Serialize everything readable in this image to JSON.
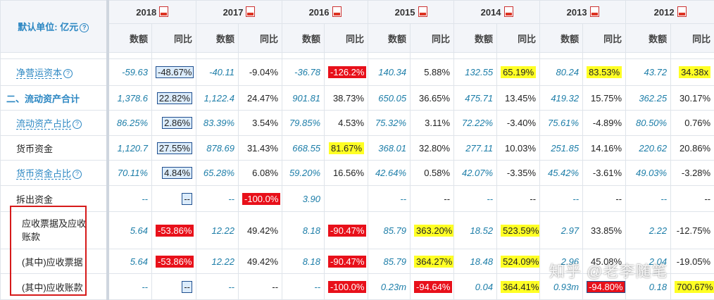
{
  "unit_label": "默认单位: 亿元",
  "years": [
    "2018",
    "2017",
    "2016",
    "2015",
    "2014",
    "2013",
    "2012"
  ],
  "sub_headers": {
    "amount": "数额",
    "yoy": "同比"
  },
  "rows": [
    {
      "label": "净营运资本",
      "style": "link",
      "help": true,
      "cells": [
        [
          "-59.63",
          {
            "t": "-48.67%",
            "h": "box"
          }
        ],
        [
          "-40.11",
          "-9.04%"
        ],
        [
          "-36.78",
          {
            "t": "-126.2%",
            "h": "red"
          }
        ],
        [
          "140.34",
          "5.88%"
        ],
        [
          "132.55",
          {
            "t": "65.19%",
            "h": "yel"
          }
        ],
        [
          "80.24",
          {
            "t": "83.53%",
            "h": "yel"
          }
        ],
        [
          "43.72",
          {
            "t": "34.38x",
            "h": "yel"
          }
        ]
      ]
    },
    {
      "label": "二、流动资产合计",
      "style": "bold",
      "help": false,
      "cells": [
        [
          "1,378.6",
          {
            "t": "22.82%",
            "h": "box"
          }
        ],
        [
          "1,122.4",
          "24.47%"
        ],
        [
          "901.81",
          "38.73%"
        ],
        [
          "650.05",
          "36.65%"
        ],
        [
          "475.71",
          "13.45%"
        ],
        [
          "419.32",
          "15.75%"
        ],
        [
          "362.25",
          "30.17%"
        ]
      ]
    },
    {
      "label": "流动资产占比",
      "style": "link",
      "help": true,
      "cells": [
        [
          "86.25%",
          {
            "t": "2.86%",
            "h": "box"
          }
        ],
        [
          "83.39%",
          "3.54%"
        ],
        [
          "79.85%",
          "4.53%"
        ],
        [
          "75.32%",
          "3.11%"
        ],
        [
          "72.22%",
          "-3.40%"
        ],
        [
          "75.61%",
          "-4.89%"
        ],
        [
          "80.50%",
          "0.76%"
        ]
      ]
    },
    {
      "label": "货币资金",
      "style": "plain",
      "help": false,
      "cells": [
        [
          "1,120.7",
          {
            "t": "27.55%",
            "h": "box"
          }
        ],
        [
          "878.69",
          "31.43%"
        ],
        [
          "668.55",
          {
            "t": "81.67%",
            "h": "yel"
          }
        ],
        [
          "368.01",
          "32.80%"
        ],
        [
          "277.11",
          "10.03%"
        ],
        [
          "251.85",
          "14.16%"
        ],
        [
          "220.62",
          "20.86%"
        ]
      ]
    },
    {
      "label": "货币资金占比",
      "style": "link",
      "help": true,
      "cells": [
        [
          "70.11%",
          {
            "t": "4.84%",
            "h": "box"
          }
        ],
        [
          "65.28%",
          "6.08%"
        ],
        [
          "59.20%",
          "16.56%"
        ],
        [
          "42.64%",
          "0.58%"
        ],
        [
          "42.07%",
          "-3.35%"
        ],
        [
          "45.42%",
          "-3.61%"
        ],
        [
          "49.03%",
          "-3.28%"
        ]
      ]
    },
    {
      "label": "拆出资金",
      "style": "plain",
      "help": false,
      "cells": [
        [
          "--",
          {
            "t": "--",
            "h": "box"
          }
        ],
        [
          "--",
          {
            "t": "-100.0%",
            "h": "red"
          }
        ],
        [
          "3.90",
          ""
        ],
        [
          "--",
          "--"
        ],
        [
          "--",
          "--"
        ],
        [
          "--",
          "--"
        ],
        [
          "--",
          "--"
        ]
      ]
    },
    {
      "label": "应收票据及应收账款",
      "style": "wrap",
      "help": false,
      "cells": [
        [
          "5.64",
          {
            "t": "-53.86%",
            "h": "red"
          }
        ],
        [
          "12.22",
          "49.42%"
        ],
        [
          "8.18",
          {
            "t": "-90.47%",
            "h": "red"
          }
        ],
        [
          "85.79",
          {
            "t": "363.20%",
            "h": "yel"
          }
        ],
        [
          "18.52",
          {
            "t": "523.59%",
            "h": "yel"
          }
        ],
        [
          "2.97",
          "33.85%"
        ],
        [
          "2.22",
          "-12.75%"
        ]
      ]
    },
    {
      "label": "(其中)应收票据",
      "style": "plain2",
      "help": false,
      "cells": [
        [
          "5.64",
          {
            "t": "-53.86%",
            "h": "red"
          }
        ],
        [
          "12.22",
          "49.42%"
        ],
        [
          "8.18",
          {
            "t": "-90.47%",
            "h": "red"
          }
        ],
        [
          "85.79",
          {
            "t": "364.27%",
            "h": "yel"
          }
        ],
        [
          "18.48",
          {
            "t": "524.09%",
            "h": "yel"
          }
        ],
        [
          "2.96",
          "45.08%"
        ],
        [
          "2.04",
          "-19.05%"
        ]
      ]
    },
    {
      "label": "(其中)应收账款",
      "style": "plain2",
      "help": false,
      "cells": [
        [
          "--",
          {
            "t": "--",
            "h": "box"
          }
        ],
        [
          "--",
          "--"
        ],
        [
          "--",
          {
            "t": "-100.0%",
            "h": "red"
          }
        ],
        [
          "0.23m",
          {
            "t": "-94.64%",
            "h": "red"
          }
        ],
        [
          "0.04",
          {
            "t": "364.41%",
            "h": "yel"
          }
        ],
        [
          "0.93m",
          {
            "t": "-94.80%",
            "h": "redbox"
          }
        ],
        [
          "0.18",
          {
            "t": "700.67%",
            "h": "yel"
          }
        ]
      ]
    }
  ],
  "watermark": "知乎 @老李随笔"
}
